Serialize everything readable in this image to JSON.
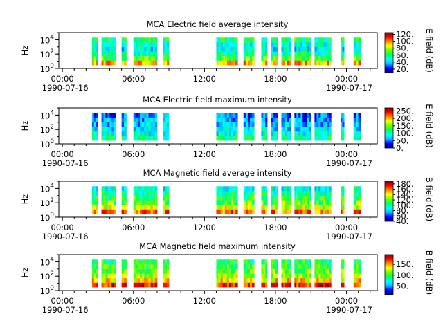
{
  "figure": {
    "background": "#ffffff"
  },
  "chart_data": [
    {
      "type": "heatmap",
      "title": "MCA  Electric field average intensity",
      "ylabel": "Hz",
      "colorbar": {
        "label": "E field (dB)",
        "range": [
          10,
          125
        ],
        "ticks": [
          "20.",
          "40.",
          "60.",
          "80.",
          "100.",
          "120."
        ],
        "tick_values": [
          20,
          40,
          60,
          80,
          100,
          120
        ]
      },
      "yscale": "log",
      "ylim": [
        1,
        100000
      ],
      "y_tick_labels": [
        {
          "base": "10",
          "exp": "0"
        },
        {
          "base": "10",
          "exp": "2"
        },
        {
          "base": "10",
          "exp": "4"
        }
      ],
      "y_tick_values": [
        1,
        100,
        10000
      ],
      "x_tick_labels": [
        "00:00\n1990-07-16",
        "06:00",
        "12:00",
        "18:00",
        "00:00\n1990-07-17"
      ],
      "x_tick_hours": [
        0,
        6,
        12,
        18,
        24
      ],
      "xlim_hours": [
        -0.3,
        26.6
      ],
      "freq_range_hz": [
        3,
        20000
      ],
      "profile": [
        95,
        70,
        55,
        45,
        50,
        60
      ]
    },
    {
      "type": "heatmap",
      "title": "MCA  Electric field maximum intensity",
      "ylabel": "Hz",
      "colorbar": {
        "label": "E field (dB)",
        "range": [
          0,
          270
        ],
        "ticks": [
          "0.",
          "50.",
          "100.",
          "150.",
          "200.",
          "250."
        ],
        "tick_values": [
          0,
          50,
          100,
          150,
          200,
          250
        ]
      },
      "yscale": "log",
      "ylim": [
        1,
        100000
      ],
      "y_tick_labels": [
        {
          "base": "10",
          "exp": "0"
        },
        {
          "base": "10",
          "exp": "2"
        },
        {
          "base": "10",
          "exp": "4"
        }
      ],
      "y_tick_values": [
        1,
        100,
        10000
      ],
      "x_tick_labels": [
        "00:00\n1990-07-16",
        "06:00",
        "12:00",
        "18:00",
        "00:00\n1990-07-17"
      ],
      "x_tick_hours": [
        0,
        6,
        12,
        18,
        24
      ],
      "xlim_hours": [
        -0.3,
        26.6
      ],
      "freq_range_hz": [
        3,
        20000
      ],
      "profile": [
        110,
        90,
        80,
        70,
        60,
        50
      ]
    },
    {
      "type": "heatmap",
      "title": "MCA  Magnetic field average intensity",
      "ylabel": "Hz",
      "colorbar": {
        "label": "B field (dB)",
        "range": [
          40,
          190
        ],
        "ticks": [
          "40.",
          "60.",
          "80.",
          "100.",
          "120.",
          "140.",
          "160.",
          "180."
        ],
        "tick_values": [
          40,
          60,
          80,
          100,
          120,
          140,
          160,
          180
        ]
      },
      "yscale": "log",
      "ylim": [
        1,
        100000
      ],
      "y_tick_labels": [
        {
          "base": "10",
          "exp": "0"
        },
        {
          "base": "10",
          "exp": "2"
        },
        {
          "base": "10",
          "exp": "4"
        }
      ],
      "y_tick_values": [
        1,
        100,
        10000
      ],
      "x_tick_labels": [
        "00:00\n1990-07-16",
        "06:00",
        "12:00",
        "18:00",
        "00:00\n1990-07-17"
      ],
      "x_tick_hours": [
        0,
        6,
        12,
        18,
        24
      ],
      "xlim_hours": [
        -0.3,
        26.6
      ],
      "freq_range_hz": [
        3,
        20000
      ],
      "profile": [
        160,
        135,
        120,
        110,
        100,
        90
      ]
    },
    {
      "type": "heatmap",
      "title": "MCA  Magnetic field maximum intensity",
      "ylabel": "Hz",
      "colorbar": {
        "label": "B field (dB)",
        "range": [
          10,
          195
        ],
        "ticks": [
          "50.",
          "100.",
          "150."
        ],
        "tick_values": [
          50,
          100,
          150
        ]
      },
      "yscale": "log",
      "ylim": [
        1,
        100000
      ],
      "y_tick_labels": [
        {
          "base": "10",
          "exp": "0"
        },
        {
          "base": "10",
          "exp": "2"
        },
        {
          "base": "10",
          "exp": "4"
        }
      ],
      "y_tick_values": [
        1,
        100,
        10000
      ],
      "x_tick_labels": [
        "00:00\n1990-07-16",
        "06:00",
        "12:00",
        "18:00",
        "00:00\n1990-07-17"
      ],
      "x_tick_hours": [
        0,
        6,
        12,
        18,
        24
      ],
      "xlim_hours": [
        -0.3,
        26.6
      ],
      "freq_range_hz": [
        3,
        20000
      ],
      "profile": [
        170,
        140,
        120,
        110,
        100,
        95
      ]
    }
  ],
  "data_intervals_hours": [
    [
      2.5,
      3.0
    ],
    [
      3.3,
      4.5
    ],
    [
      5.0,
      5.4
    ],
    [
      6.0,
      8.0
    ],
    [
      8.5,
      9.0
    ],
    [
      13.0,
      14.8
    ],
    [
      15.3,
      16.2
    ],
    [
      16.8,
      17.3
    ],
    [
      17.6,
      18.2
    ],
    [
      18.5,
      19.3
    ],
    [
      19.6,
      21.0
    ],
    [
      21.3,
      22.7
    ],
    [
      23.5,
      23.8
    ],
    [
      24.6,
      25.2
    ]
  ],
  "colormap": [
    "#00008f",
    "#0000ff",
    "#00bfff",
    "#00ffff",
    "#00ff66",
    "#66ff00",
    "#ffff00",
    "#ff8c00",
    "#ff0000",
    "#8b0000"
  ]
}
